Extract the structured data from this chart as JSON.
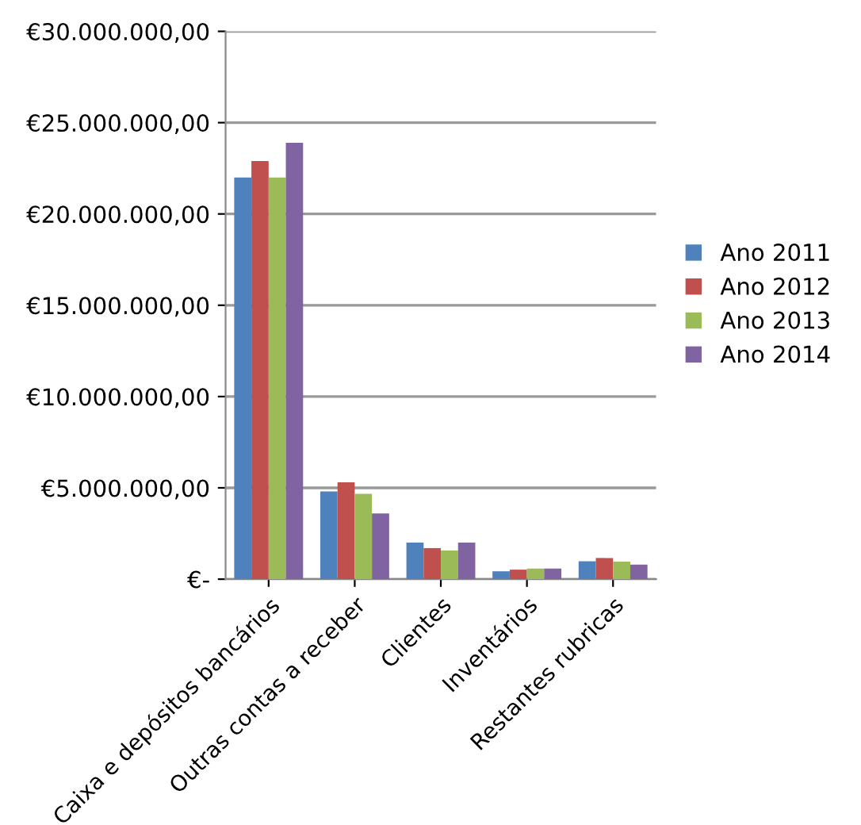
{
  "chart_data": {
    "type": "bar",
    "categories": [
      "Caixa e depósitos bancários",
      "Outras contas a receber",
      "Clientes",
      "Inventários",
      "Restantes rubricas"
    ],
    "series": [
      {
        "name": "Ano 2011",
        "color": "#4f81bd",
        "values": [
          22000000,
          4800000,
          2000000,
          430000,
          980000
        ]
      },
      {
        "name": "Ano 2012",
        "color": "#c0504d",
        "values": [
          22900000,
          5300000,
          1700000,
          520000,
          1160000
        ]
      },
      {
        "name": "Ano 2013",
        "color": "#9bbb59",
        "values": [
          22000000,
          4670000,
          1570000,
          580000,
          960000
        ]
      },
      {
        "name": "Ano 2014",
        "color": "#8064a2",
        "values": [
          23900000,
          3600000,
          2000000,
          580000,
          800000
        ]
      }
    ],
    "ylim": [
      0,
      30000000
    ],
    "yticks": [
      {
        "value": 0,
        "label": "€-"
      },
      {
        "value": 5000000,
        "label": "€5.000.000,00"
      },
      {
        "value": 10000000,
        "label": "€10.000.000,00"
      },
      {
        "value": 15000000,
        "label": "€15.000.000,00"
      },
      {
        "value": 20000000,
        "label": "€20.000.000,00"
      },
      {
        "value": 25000000,
        "label": "€25.000.000,00"
      },
      {
        "value": 30000000,
        "label": "€30.000.000,00"
      }
    ],
    "grid": "y",
    "legend": "right"
  }
}
